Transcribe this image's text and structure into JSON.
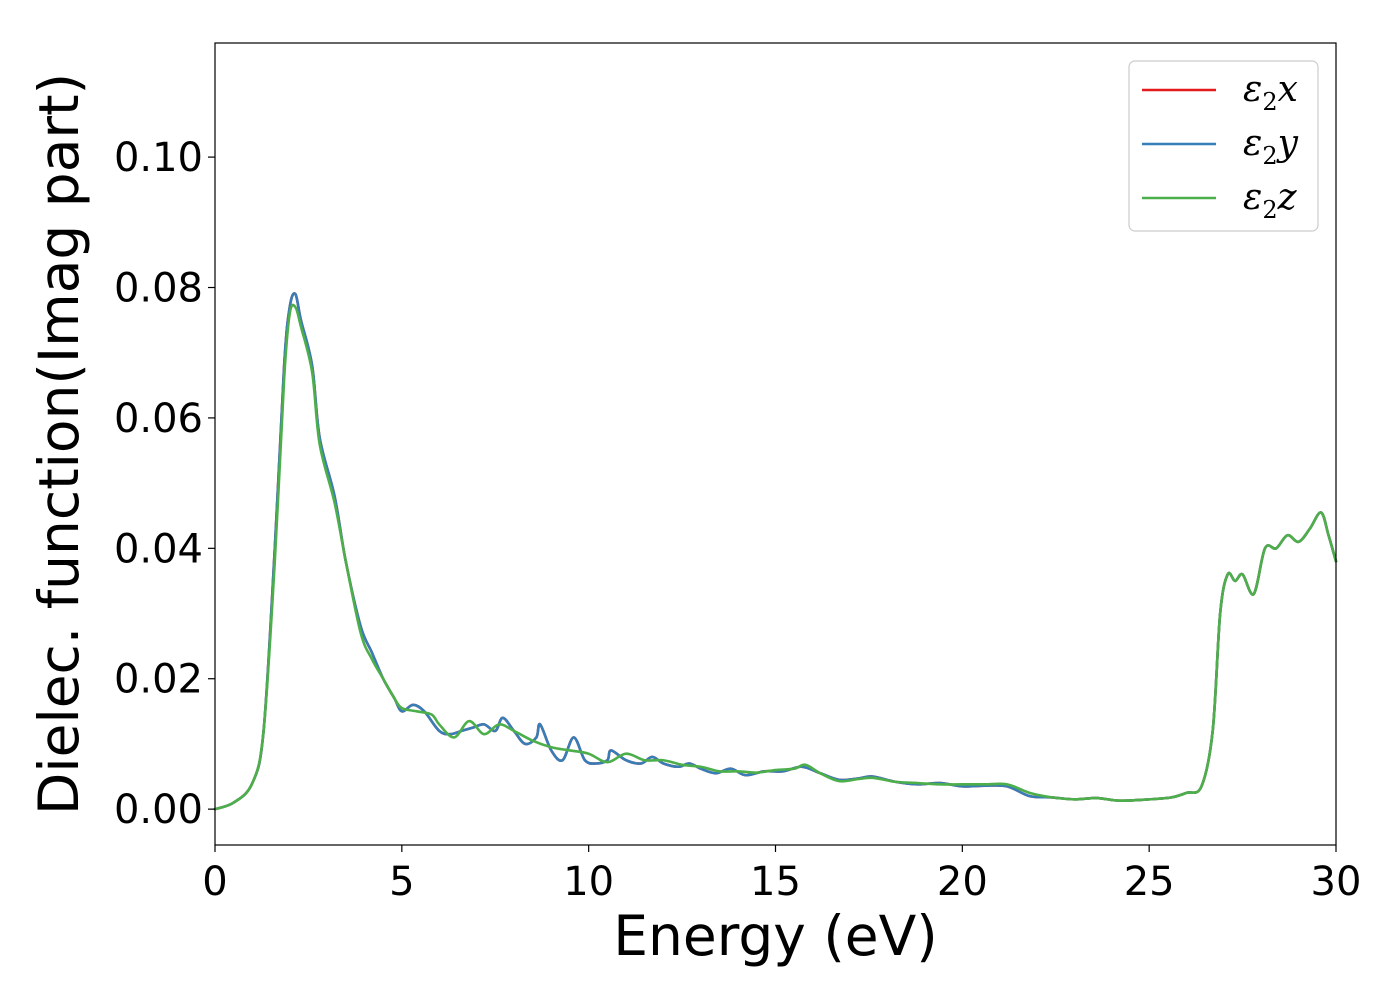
{
  "chart_data": {
    "type": "line",
    "title": "",
    "xlabel": "Energy (eV)",
    "ylabel": "Dielec. function(Imag part)",
    "xlim": [
      0,
      30
    ],
    "ylim": [
      -0.0055,
      0.1175
    ],
    "xticks": [
      0,
      5,
      10,
      15,
      20,
      25,
      30
    ],
    "xtick_labels": [
      "0",
      "5",
      "10",
      "15",
      "20",
      "25",
      "30"
    ],
    "yticks": [
      0.0,
      0.02,
      0.04,
      0.06,
      0.08,
      0.1
    ],
    "ytick_labels": [
      "0.00",
      "0.02",
      "0.04",
      "0.06",
      "0.08",
      "0.10"
    ],
    "grid": false,
    "legend_position": "top-right",
    "series": [
      {
        "name": "ε2x",
        "color": "#e41a1c",
        "points": [
          [
            0,
            0
          ],
          [
            0.5,
            0.001
          ],
          [
            1.0,
            0.004
          ],
          [
            1.3,
            0.012
          ],
          [
            1.6,
            0.04
          ],
          [
            1.85,
            0.068
          ],
          [
            2.0,
            0.077
          ],
          [
            2.15,
            0.079
          ],
          [
            2.3,
            0.075
          ],
          [
            2.6,
            0.068
          ],
          [
            2.8,
            0.057
          ],
          [
            3.2,
            0.048
          ],
          [
            3.5,
            0.038
          ],
          [
            3.9,
            0.028
          ],
          [
            4.2,
            0.024
          ],
          [
            4.5,
            0.02
          ],
          [
            4.8,
            0.017
          ],
          [
            5.0,
            0.015
          ],
          [
            5.3,
            0.016
          ],
          [
            5.6,
            0.015
          ],
          [
            6.0,
            0.012
          ],
          [
            6.3,
            0.0115
          ],
          [
            6.6,
            0.012
          ],
          [
            6.9,
            0.0125
          ],
          [
            7.2,
            0.013
          ],
          [
            7.5,
            0.012
          ],
          [
            7.7,
            0.014
          ],
          [
            8.0,
            0.012
          ],
          [
            8.3,
            0.01
          ],
          [
            8.6,
            0.011
          ],
          [
            8.7,
            0.013
          ],
          [
            9.0,
            0.009
          ],
          [
            9.3,
            0.0075
          ],
          [
            9.6,
            0.011
          ],
          [
            9.9,
            0.0075
          ],
          [
            10.2,
            0.007
          ],
          [
            10.5,
            0.0075
          ],
          [
            10.6,
            0.009
          ],
          [
            11.0,
            0.0075
          ],
          [
            11.4,
            0.007
          ],
          [
            11.7,
            0.008
          ],
          [
            12.0,
            0.007
          ],
          [
            12.4,
            0.0065
          ],
          [
            12.7,
            0.007
          ],
          [
            13.0,
            0.0062
          ],
          [
            13.4,
            0.0055
          ],
          [
            13.8,
            0.0062
          ],
          [
            14.2,
            0.0052
          ],
          [
            14.7,
            0.0058
          ],
          [
            15.2,
            0.0058
          ],
          [
            15.7,
            0.0065
          ],
          [
            16.2,
            0.0055
          ],
          [
            16.7,
            0.0045
          ],
          [
            17.2,
            0.0047
          ],
          [
            17.6,
            0.005
          ],
          [
            18.2,
            0.0042
          ],
          [
            18.8,
            0.0038
          ],
          [
            19.4,
            0.004
          ],
          [
            20.0,
            0.0035
          ],
          [
            20.6,
            0.0036
          ],
          [
            21.2,
            0.0035
          ],
          [
            21.8,
            0.002
          ],
          [
            22.4,
            0.0018
          ],
          [
            23.0,
            0.0015
          ],
          [
            23.6,
            0.0017
          ],
          [
            24.2,
            0.0013
          ],
          [
            25.0,
            0.0015
          ],
          [
            25.6,
            0.0018
          ],
          [
            26.0,
            0.0025
          ],
          [
            26.4,
            0.0035
          ],
          [
            26.7,
            0.012
          ],
          [
            26.9,
            0.03
          ],
          [
            27.1,
            0.036
          ],
          [
            27.3,
            0.035
          ],
          [
            27.5,
            0.036
          ],
          [
            27.8,
            0.033
          ],
          [
            28.1,
            0.04
          ],
          [
            28.4,
            0.04
          ],
          [
            28.7,
            0.042
          ],
          [
            29.0,
            0.041
          ],
          [
            29.3,
            0.043
          ],
          [
            29.6,
            0.0455
          ],
          [
            29.8,
            0.042
          ],
          [
            30.0,
            0.038
          ]
        ]
      },
      {
        "name": "ε2y",
        "color": "#377eb8",
        "points": [
          [
            0,
            0
          ],
          [
            0.5,
            0.001
          ],
          [
            1.0,
            0.004
          ],
          [
            1.3,
            0.012
          ],
          [
            1.6,
            0.04
          ],
          [
            1.85,
            0.068
          ],
          [
            2.0,
            0.077
          ],
          [
            2.15,
            0.079
          ],
          [
            2.3,
            0.075
          ],
          [
            2.6,
            0.068
          ],
          [
            2.8,
            0.057
          ],
          [
            3.2,
            0.048
          ],
          [
            3.5,
            0.038
          ],
          [
            3.9,
            0.028
          ],
          [
            4.2,
            0.024
          ],
          [
            4.5,
            0.02
          ],
          [
            4.8,
            0.017
          ],
          [
            5.0,
            0.015
          ],
          [
            5.3,
            0.016
          ],
          [
            5.6,
            0.015
          ],
          [
            6.0,
            0.012
          ],
          [
            6.3,
            0.0115
          ],
          [
            6.6,
            0.012
          ],
          [
            6.9,
            0.0125
          ],
          [
            7.2,
            0.013
          ],
          [
            7.5,
            0.012
          ],
          [
            7.7,
            0.014
          ],
          [
            8.0,
            0.012
          ],
          [
            8.3,
            0.01
          ],
          [
            8.6,
            0.011
          ],
          [
            8.7,
            0.013
          ],
          [
            9.0,
            0.009
          ],
          [
            9.3,
            0.0075
          ],
          [
            9.6,
            0.011
          ],
          [
            9.9,
            0.0075
          ],
          [
            10.2,
            0.007
          ],
          [
            10.5,
            0.0075
          ],
          [
            10.6,
            0.009
          ],
          [
            11.0,
            0.0075
          ],
          [
            11.4,
            0.007
          ],
          [
            11.7,
            0.008
          ],
          [
            12.0,
            0.007
          ],
          [
            12.4,
            0.0065
          ],
          [
            12.7,
            0.007
          ],
          [
            13.0,
            0.0062
          ],
          [
            13.4,
            0.0055
          ],
          [
            13.8,
            0.0062
          ],
          [
            14.2,
            0.0052
          ],
          [
            14.7,
            0.0058
          ],
          [
            15.2,
            0.0058
          ],
          [
            15.7,
            0.0065
          ],
          [
            16.2,
            0.0055
          ],
          [
            16.7,
            0.0045
          ],
          [
            17.2,
            0.0047
          ],
          [
            17.6,
            0.005
          ],
          [
            18.2,
            0.0042
          ],
          [
            18.8,
            0.0038
          ],
          [
            19.4,
            0.004
          ],
          [
            20.0,
            0.0035
          ],
          [
            20.6,
            0.0036
          ],
          [
            21.2,
            0.0035
          ],
          [
            21.8,
            0.002
          ],
          [
            22.4,
            0.0018
          ],
          [
            23.0,
            0.0015
          ],
          [
            23.6,
            0.0017
          ],
          [
            24.2,
            0.0013
          ],
          [
            25.0,
            0.0015
          ],
          [
            25.6,
            0.0018
          ],
          [
            26.0,
            0.0025
          ],
          [
            26.4,
            0.0035
          ],
          [
            26.7,
            0.012
          ],
          [
            26.9,
            0.03
          ],
          [
            27.1,
            0.036
          ],
          [
            27.3,
            0.035
          ],
          [
            27.5,
            0.036
          ],
          [
            27.8,
            0.033
          ],
          [
            28.1,
            0.04
          ],
          [
            28.4,
            0.04
          ],
          [
            28.7,
            0.042
          ],
          [
            29.0,
            0.041
          ],
          [
            29.3,
            0.043
          ],
          [
            29.6,
            0.0455
          ],
          [
            29.8,
            0.042
          ],
          [
            30.0,
            0.038
          ]
        ]
      },
      {
        "name": "ε2z",
        "color": "#4daf4a",
        "points": [
          [
            0,
            0
          ],
          [
            0.5,
            0.001
          ],
          [
            1.0,
            0.004
          ],
          [
            1.3,
            0.012
          ],
          [
            1.6,
            0.038
          ],
          [
            1.85,
            0.066
          ],
          [
            2.0,
            0.076
          ],
          [
            2.15,
            0.077
          ],
          [
            2.3,
            0.074
          ],
          [
            2.6,
            0.067
          ],
          [
            2.8,
            0.056
          ],
          [
            3.2,
            0.047
          ],
          [
            3.5,
            0.038
          ],
          [
            3.9,
            0.027
          ],
          [
            4.2,
            0.023
          ],
          [
            4.5,
            0.02
          ],
          [
            4.8,
            0.017
          ],
          [
            5.0,
            0.0155
          ],
          [
            5.4,
            0.015
          ],
          [
            5.8,
            0.0145
          ],
          [
            6.0,
            0.013
          ],
          [
            6.4,
            0.011
          ],
          [
            6.8,
            0.0135
          ],
          [
            7.2,
            0.0115
          ],
          [
            7.6,
            0.013
          ],
          [
            8.0,
            0.012
          ],
          [
            8.5,
            0.0105
          ],
          [
            9.0,
            0.0095
          ],
          [
            9.5,
            0.009
          ],
          [
            10.0,
            0.0085
          ],
          [
            10.5,
            0.0072
          ],
          [
            11.0,
            0.0085
          ],
          [
            11.5,
            0.0075
          ],
          [
            12.0,
            0.0075
          ],
          [
            12.5,
            0.0068
          ],
          [
            13.0,
            0.0065
          ],
          [
            13.5,
            0.0058
          ],
          [
            14.0,
            0.0058
          ],
          [
            14.5,
            0.0056
          ],
          [
            15.0,
            0.006
          ],
          [
            15.5,
            0.0062
          ],
          [
            15.8,
            0.0068
          ],
          [
            16.2,
            0.0055
          ],
          [
            16.7,
            0.0043
          ],
          [
            17.2,
            0.0046
          ],
          [
            17.6,
            0.0048
          ],
          [
            18.2,
            0.0042
          ],
          [
            18.8,
            0.004
          ],
          [
            19.4,
            0.0038
          ],
          [
            20.0,
            0.0038
          ],
          [
            20.6,
            0.0038
          ],
          [
            21.2,
            0.0038
          ],
          [
            21.8,
            0.0025
          ],
          [
            22.4,
            0.0018
          ],
          [
            23.0,
            0.0015
          ],
          [
            23.6,
            0.0017
          ],
          [
            24.2,
            0.0013
          ],
          [
            25.0,
            0.0015
          ],
          [
            25.6,
            0.0018
          ],
          [
            26.0,
            0.0025
          ],
          [
            26.4,
            0.0035
          ],
          [
            26.7,
            0.012
          ],
          [
            26.9,
            0.03
          ],
          [
            27.1,
            0.036
          ],
          [
            27.3,
            0.035
          ],
          [
            27.5,
            0.036
          ],
          [
            27.8,
            0.033
          ],
          [
            28.1,
            0.04
          ],
          [
            28.4,
            0.04
          ],
          [
            28.7,
            0.042
          ],
          [
            29.0,
            0.041
          ],
          [
            29.3,
            0.043
          ],
          [
            29.6,
            0.0455
          ],
          [
            29.8,
            0.042
          ],
          [
            30.0,
            0.038
          ]
        ]
      }
    ]
  }
}
